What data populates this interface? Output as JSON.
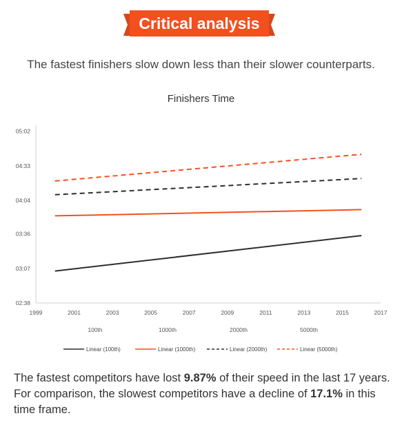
{
  "banner": {
    "label": "Critical analysis",
    "color": "#f2501f"
  },
  "subtitle": "The fastest finishers slow down less than their slower counterparts.",
  "summary": {
    "part1": "The fastest competitors have lost ",
    "highlight1": "9.87%",
    "part2": " of their speed in the last 17 years. For comparison, the slowest competitors have a decline of ",
    "highlight2": "17.1%",
    "part3": " in this time frame."
  },
  "chart_data": {
    "type": "line",
    "title": "Finishers Time",
    "xlabel": "",
    "ylabel": "",
    "x_range": [
      1999,
      2017
    ],
    "x_ticks": [
      "1999",
      "2001",
      "2003",
      "2005",
      "2007",
      "2009",
      "2011",
      "2013",
      "2015",
      "2017"
    ],
    "y_range_minutes": [
      158,
      307
    ],
    "y_tick_values_minutes": [
      158,
      187,
      216,
      244,
      273,
      302
    ],
    "y_tick_labels": [
      "02:38",
      "03:07",
      "03:36",
      "04:04",
      "04:33",
      "05:02"
    ],
    "category_labels": [
      "100th",
      "1000th",
      "2000th",
      "5000th"
    ],
    "grid": false,
    "legend_position": "bottom",
    "series": [
      {
        "name": "Linear (100th)",
        "color": "#2d2d2d",
        "dash": "solid",
        "x": [
          2000,
          2016
        ],
        "y_minutes": [
          184.8,
          214.5
        ]
      },
      {
        "name": "Linear (1000th)",
        "color": "#f2501f",
        "dash": "solid",
        "x": [
          2000,
          2016
        ],
        "y_minutes": [
          231.1,
          236.3
        ]
      },
      {
        "name": "Linear (2000th)",
        "color": "#2d2d2d",
        "dash": "dashed",
        "x": [
          2000,
          2016
        ],
        "y_minutes": [
          248.8,
          262.4
        ]
      },
      {
        "name": "Linear (5000th)",
        "color": "#f2501f",
        "dash": "dashed",
        "x": [
          2000,
          2016
        ],
        "y_minutes": [
          260.3,
          282.7
        ]
      }
    ]
  }
}
